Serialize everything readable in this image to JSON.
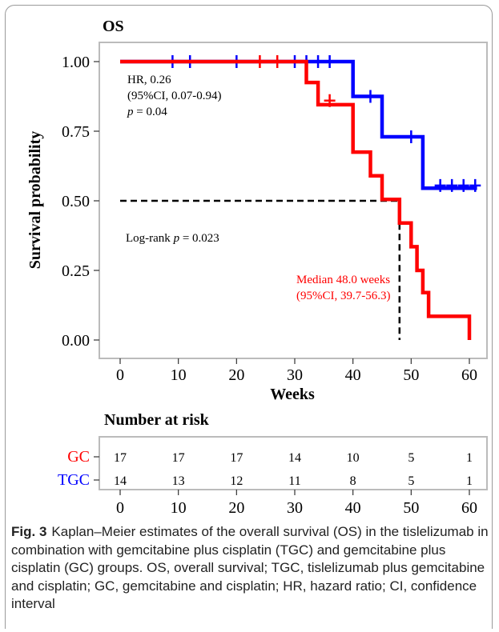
{
  "chart_data": {
    "type": "line",
    "title": "OS",
    "xlabel": "Weeks",
    "ylabel": "Survival probability",
    "xlim": [
      0,
      60
    ],
    "ylim": [
      0,
      1
    ],
    "xticks": [
      "0",
      "10",
      "20",
      "30",
      "40",
      "50",
      "60"
    ],
    "yticks": [
      "0.00",
      "0.25",
      "0.50",
      "0.75",
      "1.00"
    ],
    "series": [
      {
        "name": "TGC",
        "color": "#0000ff",
        "steps": [
          [
            0,
            1.0
          ],
          [
            40,
            1.0
          ],
          [
            40,
            0.875
          ],
          [
            45,
            0.875
          ],
          [
            45,
            0.73
          ],
          [
            52,
            0.73
          ],
          [
            52,
            0.545
          ],
          [
            61,
            0.545
          ],
          [
            61,
            0.555
          ]
        ],
        "censored": [
          [
            9,
            1.0
          ],
          [
            12,
            1.0
          ],
          [
            20,
            1.0
          ],
          [
            30,
            1.0
          ],
          [
            32,
            1.0
          ],
          [
            34,
            1.0
          ],
          [
            36,
            1.0
          ],
          [
            43,
            0.875
          ],
          [
            50,
            0.73
          ],
          [
            55,
            0.555
          ],
          [
            57,
            0.555
          ],
          [
            59,
            0.555
          ],
          [
            61,
            0.555
          ]
        ]
      },
      {
        "name": "GC",
        "color": "#ff0000",
        "steps": [
          [
            0,
            1.0
          ],
          [
            32,
            1.0
          ],
          [
            32,
            0.925
          ],
          [
            34,
            0.925
          ],
          [
            34,
            0.845
          ],
          [
            40,
            0.845
          ],
          [
            40,
            0.675
          ],
          [
            43,
            0.675
          ],
          [
            43,
            0.59
          ],
          [
            45,
            0.59
          ],
          [
            45,
            0.505
          ],
          [
            48,
            0.505
          ],
          [
            48,
            0.42
          ],
          [
            50,
            0.42
          ],
          [
            50,
            0.335
          ],
          [
            51,
            0.335
          ],
          [
            51,
            0.25
          ],
          [
            52,
            0.25
          ],
          [
            52,
            0.17
          ],
          [
            53,
            0.17
          ],
          [
            53,
            0.085
          ],
          [
            60,
            0.085
          ],
          [
            60,
            0.0
          ]
        ],
        "censored": [
          [
            24,
            1.0
          ],
          [
            27,
            1.0
          ],
          [
            36,
            0.86
          ]
        ]
      }
    ],
    "median_line": {
      "y": 0.5,
      "x_end": 48
    },
    "annotations": {
      "hr_line1": "HR, 0.26",
      "hr_line2": "(95%CI, 0.07-0.94)",
      "hr_line3_italic": "p",
      "hr_line3_rest": " = 0.04",
      "logrank_pre": "Log-rank ",
      "logrank_p": "p",
      "logrank_post": " = 0.023",
      "median_line1": "Median 48.0 weeks",
      "median_line2": "(95%CI, 39.7-56.3)"
    },
    "risk_table": {
      "title": "Number at risk",
      "rows": [
        {
          "label": "GC",
          "color": "#ff0000",
          "values": [
            "17",
            "17",
            "17",
            "14",
            "10",
            "5",
            "1"
          ]
        },
        {
          "label": "TGC",
          "color": "#0000ff",
          "values": [
            "14",
            "13",
            "12",
            "11",
            "8",
            "5",
            "1"
          ]
        }
      ],
      "xticks": [
        "0",
        "10",
        "20",
        "30",
        "40",
        "50",
        "60"
      ]
    }
  },
  "caption": {
    "label": "Fig. 3",
    "text": "Kaplan–Meier estimates of the overall survival (OS) in the tislelizumab in combination with gemcitabine plus cisplatin (TGC) and gemcitabine plus cisplatin (GC) groups. OS, overall survival; TGC, tislelizumab plus gemcitabine and cisplatin; GC, gemcitabine and cisplatin; HR, hazard ratio; CI, confidence interval"
  }
}
